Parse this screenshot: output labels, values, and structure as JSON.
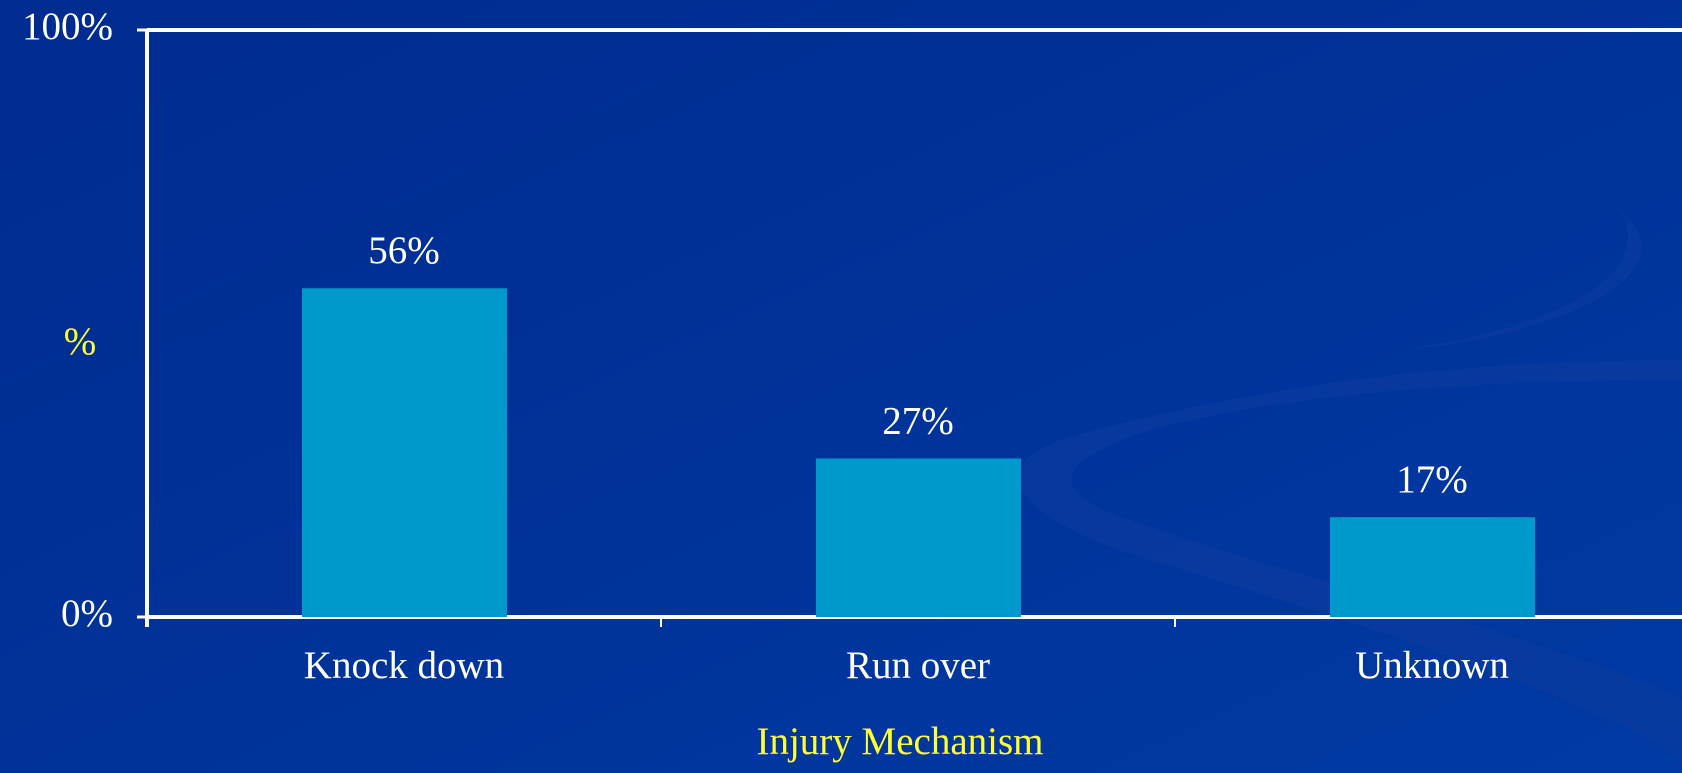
{
  "chart_data": {
    "type": "bar",
    "categories": [
      "Knock down",
      "Run over",
      "Unknown"
    ],
    "values": [
      56,
      27,
      17
    ],
    "value_labels": [
      "56%",
      "27%",
      "17%"
    ],
    "color": "#0099cc",
    "ylabel": "%",
    "xlabel": "Injury Mechanism",
    "ylim": [
      0,
      100
    ],
    "yticks": [
      {
        "value": 0,
        "label": "0%"
      },
      {
        "value": 100,
        "label": "100%"
      }
    ]
  }
}
